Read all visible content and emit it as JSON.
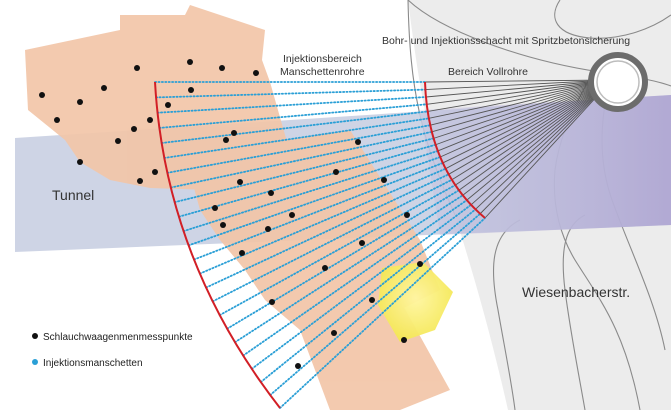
{
  "labels": {
    "tunnel": "Tunnel",
    "injection_area_line1": "Injektionsbereich",
    "injection_area_line2": "Manschettenrohre",
    "shaft": "Bohr- und Injektionsschacht mit Spritzbetonsicherung",
    "solid_pipe_area": "Bereich Vollrohre",
    "street": "Wiesenbacherstr."
  },
  "legend": {
    "items": [
      {
        "label": "Schlauchwaagenmenmesspunkte",
        "color": "#111111",
        "icon": "black-dot"
      },
      {
        "label": "Injektionsmanschetten",
        "color": "#2a9fd6",
        "icon": "blue-dot"
      }
    ]
  },
  "colors": {
    "tunnel_band": "#c5cce0",
    "building": "#f2c5a8",
    "street_gray": "#ececec",
    "street_outline": "#7a7a7a",
    "arc_red": "#d21f26",
    "sleeve_blue": "#2a9fd6",
    "solid_pipe_line": "#555555",
    "highlight_yellow": "#f6ee6a",
    "purple_tint": "#a99ccf"
  }
}
